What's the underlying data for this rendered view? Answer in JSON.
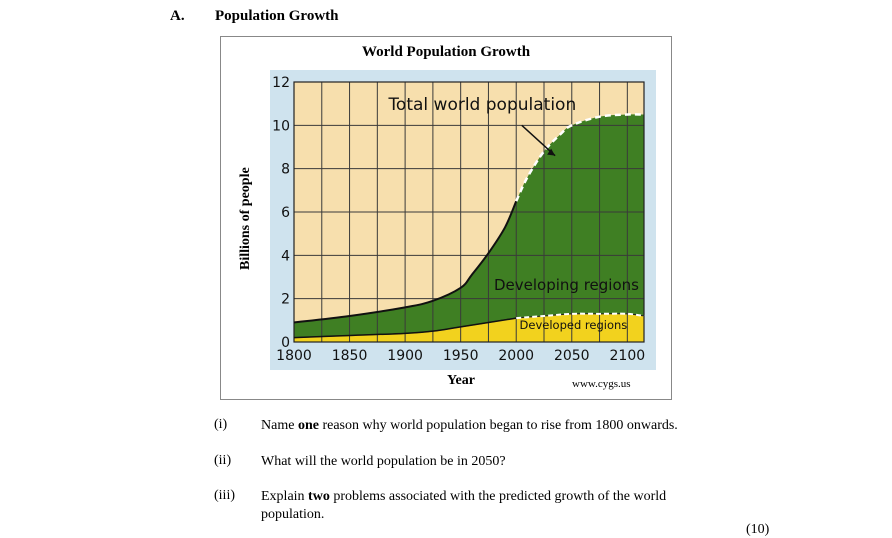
{
  "section": {
    "letter": "A.",
    "title": "Population Growth"
  },
  "figure": {
    "title": "World Population Growth",
    "credit": "www.cygs.us"
  },
  "chart_data": {
    "type": "area",
    "title": "World Population Growth",
    "xlabel": "Year",
    "ylabel": "Billions of people",
    "x_ticks": [
      "1800",
      "1850",
      "1900",
      "1950",
      "2000",
      "2050",
      "2100"
    ],
    "y_ticks": [
      "0",
      "2",
      "4",
      "6",
      "8",
      "10",
      "12"
    ],
    "xlim": [
      1800,
      2115
    ],
    "ylim": [
      0,
      12
    ],
    "grid": true,
    "annotations": [
      "Total world population",
      "Developing regions",
      "Developed regions"
    ],
    "series": [
      {
        "name": "Developed regions",
        "x": [
          1800,
          1850,
          1900,
          1925,
          1950,
          1975,
          2000,
          2025,
          2050,
          2075,
          2100,
          2115
        ],
        "values": [
          0.2,
          0.3,
          0.4,
          0.5,
          0.7,
          0.9,
          1.1,
          1.2,
          1.3,
          1.3,
          1.3,
          1.2
        ]
      },
      {
        "name": "Total world population",
        "x": [
          1800,
          1850,
          1900,
          1925,
          1950,
          1960,
          1975,
          1990,
          2000,
          2010,
          2025,
          2040,
          2050,
          2075,
          2100,
          2115
        ],
        "values": [
          0.9,
          1.2,
          1.6,
          1.9,
          2.5,
          3.1,
          4.1,
          5.3,
          6.5,
          7.6,
          8.8,
          9.6,
          10.0,
          10.4,
          10.5,
          10.5
        ]
      }
    ],
    "projection_start_year": 2000,
    "colors": {
      "developed": "#f2d21e",
      "developing": "#3f7f23",
      "background": "#f7dfad",
      "grid": "#3a3a3a"
    }
  },
  "questions": [
    {
      "num": "(i)",
      "parts": [
        "Name ",
        "one",
        " reason why world population began to rise from 1800 onwards."
      ]
    },
    {
      "num": "(ii)",
      "parts": [
        "What will the world population be in 2050?",
        "",
        ""
      ]
    },
    {
      "num": "(iii)",
      "parts": [
        "Explain ",
        "two",
        " problems associated with the predicted growth of the world population."
      ]
    }
  ],
  "marks": "(10)"
}
